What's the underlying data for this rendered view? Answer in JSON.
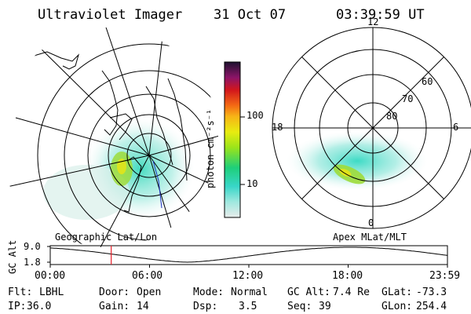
{
  "header": {
    "instrument": "Ultraviolet Imager",
    "date": "31 Oct 07",
    "time": "03:39:59 UT"
  },
  "geo_panel": {
    "label": "Geographic Lat/Lon"
  },
  "polar_panel": {
    "label": "Apex MLat/MLT",
    "mlt_labels": [
      "12",
      "18",
      "6",
      "0"
    ],
    "lat_labels": [
      "60",
      "70",
      "80"
    ]
  },
  "colorbar": {
    "unit_label": "photon cm⁻²s⁻¹",
    "tick_labels": [
      "100",
      "10"
    ]
  },
  "altitude_plot": {
    "axis_title": "GC Alt",
    "y_ticks": [
      "9.0",
      "1.8"
    ],
    "x_ticks": [
      "00:00",
      "06:00",
      "12:00",
      "18:00",
      "23:59"
    ],
    "current_time_fraction": 0.1535,
    "curve_color": "#000000",
    "marker_color": "#e8212b"
  },
  "status": {
    "flt_label": "Flt:",
    "flt_value": "LBHL",
    "door_label": "Door:",
    "door_value": "Open",
    "mode_label": "Mode:",
    "mode_value": "Normal",
    "gcalt_label": "GC Alt:",
    "gcalt_value": "7.4 Re",
    "glat_label": "GLat:",
    "glat_value": "-73.3",
    "ip_label": "IP:",
    "ip_value": "36.0",
    "gain_label": "Gain:",
    "gain_value": "14",
    "dsp_label": "Dsp:",
    "dsp_value": "3.5",
    "seq_label": "Seq:",
    "seq_value": "39",
    "glon_label": "GLon:",
    "glon_value": "254.4"
  }
}
